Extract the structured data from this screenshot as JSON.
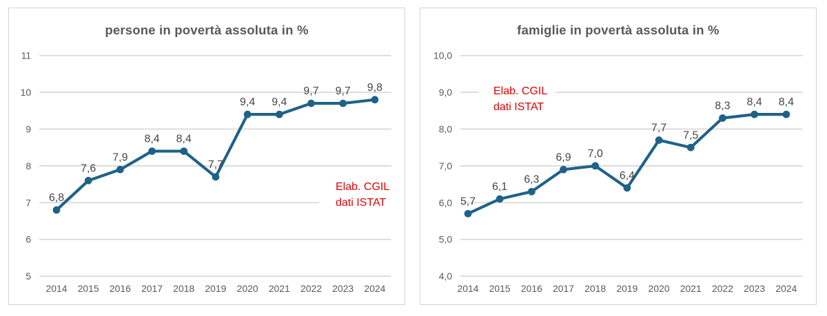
{
  "colors": {
    "line": "#1F6288",
    "grid": "#D9D9D9",
    "panel_border": "#D2D2D2",
    "title_text": "#595959",
    "tick_text": "#595959",
    "data_label_text": "#444444",
    "annotation_text": "#E00000",
    "background": "#FFFFFF"
  },
  "chart_data": [
    {
      "type": "line",
      "title": "persone in povertà assoluta in %",
      "x": [
        2014,
        2015,
        2016,
        2017,
        2018,
        2019,
        2020,
        2021,
        2022,
        2023,
        2024
      ],
      "series": [
        {
          "name": "persone in povertà assoluta in %",
          "values": [
            6.8,
            7.6,
            7.9,
            8.4,
            8.4,
            7.7,
            9.4,
            9.4,
            9.7,
            9.7,
            9.8
          ]
        }
      ],
      "data_labels": [
        "6,8",
        "7,6",
        "7,9",
        "8,4",
        "8,4",
        "7,7",
        "9,4",
        "9,4",
        "9,7",
        "9,7",
        "9,8"
      ],
      "ylim": [
        5,
        11
      ],
      "y_tick_step": 1,
      "y_tick_decimals": 0,
      "y_tick_labels": [
        "5",
        "6",
        "7",
        "8",
        "9",
        "10",
        "11"
      ],
      "data_label_decimals": 1,
      "decimal_separator": ",",
      "grid": true,
      "legend": "none",
      "line_color": "#1F6288",
      "marker": "circle",
      "annotation": {
        "lines": [
          "Elab. CGIL",
          "dati ISTAT"
        ],
        "color": "#E00000",
        "position": "middle-right"
      }
    },
    {
      "type": "line",
      "title": "famiglie in povertà assoluta in %",
      "x": [
        2014,
        2015,
        2016,
        2017,
        2018,
        2019,
        2020,
        2021,
        2022,
        2023,
        2024
      ],
      "series": [
        {
          "name": "famiglie in povertà assoluta in %",
          "values": [
            5.7,
            6.1,
            6.3,
            6.9,
            7.0,
            6.4,
            7.7,
            7.5,
            8.3,
            8.4,
            8.4
          ]
        }
      ],
      "data_labels": [
        "5,7",
        "6,1",
        "6,3",
        "6,9",
        "7,0",
        "6,4",
        "7,7",
        "7,5",
        "8,3",
        "8,4",
        "8,4"
      ],
      "ylim": [
        4,
        10
      ],
      "y_tick_step": 1,
      "y_tick_decimals": 1,
      "y_tick_labels": [
        "4,0",
        "5,0",
        "6,0",
        "7,0",
        "8,0",
        "9,0",
        "10,0"
      ],
      "data_label_decimals": 1,
      "decimal_separator": ",",
      "grid": true,
      "legend": "none",
      "line_color": "#1F6288",
      "marker": "circle",
      "annotation": {
        "lines": [
          "Elab. CGIL",
          "dati ISTAT"
        ],
        "color": "#E00000",
        "position": "upper-left"
      }
    }
  ]
}
